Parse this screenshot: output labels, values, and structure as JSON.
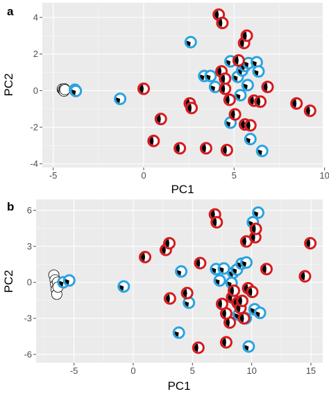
{
  "chart_data": [
    {
      "panel_label": "a",
      "type": "scatter",
      "xlabel": "PC1",
      "ylabel": "PC2",
      "xlim": [
        -5.6,
        9.9
      ],
      "ylim": [
        -4.2,
        4.8
      ],
      "xticks": [
        -5,
        0,
        5,
        10
      ],
      "xtick_labels": [
        "-5",
        "0",
        "5",
        "10"
      ],
      "yticks": [
        -4,
        -2,
        0,
        2,
        4
      ],
      "ytick_labels": [
        "-4",
        "-2",
        "0",
        "2",
        "4"
      ],
      "grid": true,
      "colors": {
        "group_black": "#000000",
        "group_blue": "#29a3e0",
        "group_red": "#d7191c"
      },
      "series": [
        {
          "group": "black",
          "points": [
            [
              -4.5,
              0.08
            ],
            [
              -4.45,
              0.02
            ],
            [
              -4.4,
              -0.03
            ],
            [
              -4.38,
              0.1
            ],
            [
              -4.35,
              0.05
            ]
          ]
        },
        {
          "group": "blue",
          "points": [
            [
              -3.8,
              0.05
            ],
            [
              -3.75,
              -0.02
            ],
            [
              -1.3,
              -0.45
            ],
            [
              2.6,
              2.65
            ],
            [
              3.35,
              0.8
            ],
            [
              3.7,
              0.8
            ],
            [
              3.95,
              0.2
            ],
            [
              4.8,
              1.6
            ],
            [
              5.2,
              0.75
            ],
            [
              5.45,
              1.1
            ],
            [
              5.6,
              1.35
            ],
            [
              5.8,
              1.5
            ],
            [
              6.25,
              1.55
            ],
            [
              6.35,
              1.05
            ],
            [
              5.75,
              0.3
            ],
            [
              5.35,
              -0.25
            ],
            [
              4.8,
              -1.75
            ],
            [
              5.9,
              -2.65
            ],
            [
              6.55,
              -3.3
            ]
          ]
        },
        {
          "group": "red",
          "points": [
            [
              0.0,
              0.1
            ],
            [
              0.95,
              -1.55
            ],
            [
              0.55,
              -2.75
            ],
            [
              2.0,
              -3.15
            ],
            [
              2.55,
              -0.7
            ],
            [
              2.65,
              -0.95
            ],
            [
              3.45,
              -3.15
            ],
            [
              4.15,
              4.15
            ],
            [
              4.35,
              3.7
            ],
            [
              4.6,
              -3.25
            ],
            [
              4.3,
              1.05
            ],
            [
              4.5,
              0.65
            ],
            [
              4.5,
              0.1
            ],
            [
              4.75,
              -0.5
            ],
            [
              5.05,
              -1.3
            ],
            [
              5.25,
              1.65
            ],
            [
              5.55,
              2.6
            ],
            [
              5.7,
              3.0
            ],
            [
              5.6,
              -1.85
            ],
            [
              5.9,
              -1.9
            ],
            [
              6.1,
              -0.55
            ],
            [
              6.45,
              -0.6
            ],
            [
              6.85,
              0.2
            ],
            [
              8.45,
              -0.7
            ],
            [
              9.2,
              -1.1
            ]
          ]
        }
      ]
    },
    {
      "panel_label": "b",
      "type": "scatter",
      "xlabel": "PC1",
      "ylabel": "PC2",
      "xlim": [
        -8.2,
        16.0
      ],
      "ylim": [
        -6.7,
        6.9
      ],
      "xticks": [
        -5,
        0,
        5,
        10,
        15
      ],
      "xtick_labels": [
        "-5",
        "0",
        "5",
        "10",
        "15"
      ],
      "yticks": [
        -6,
        -3,
        0,
        3,
        6
      ],
      "ytick_labels": [
        "-6",
        "-3",
        "0",
        "3",
        "6"
      ],
      "grid": true,
      "colors": {
        "group_black": "#000000",
        "group_blue": "#29a3e0",
        "group_red": "#d7191c"
      },
      "series": [
        {
          "group": "black",
          "points": [
            [
              -6.7,
              0.6
            ],
            [
              -6.6,
              0.2
            ],
            [
              -6.55,
              -0.2
            ],
            [
              -6.5,
              -0.6
            ],
            [
              -6.45,
              -1.0
            ],
            [
              -6.4,
              0.0
            ],
            [
              -6.35,
              -0.4
            ]
          ]
        },
        {
          "group": "blue",
          "points": [
            [
              -5.9,
              0.0
            ],
            [
              -5.4,
              0.15
            ],
            [
              -0.8,
              -0.35
            ],
            [
              4.05,
              0.9
            ],
            [
              3.85,
              -4.2
            ],
            [
              4.7,
              -1.7
            ],
            [
              7.0,
              1.1
            ],
            [
              7.65,
              1.15
            ],
            [
              7.3,
              0.15
            ],
            [
              8.45,
              0.8
            ],
            [
              8.75,
              1.05
            ],
            [
              9.15,
              1.55
            ],
            [
              9.55,
              1.65
            ],
            [
              10.1,
              5.0
            ],
            [
              10.55,
              5.8
            ],
            [
              8.3,
              -0.05
            ],
            [
              8.9,
              -2.7
            ],
            [
              9.5,
              -3.0
            ],
            [
              10.25,
              -2.25
            ],
            [
              10.7,
              -2.55
            ],
            [
              9.75,
              -5.35
            ]
          ]
        },
        {
          "group": "red",
          "points": [
            [
              1.0,
              2.1
            ],
            [
              2.75,
              2.7
            ],
            [
              3.05,
              3.25
            ],
            [
              3.1,
              -1.35
            ],
            [
              4.55,
              -0.9
            ],
            [
              5.5,
              -5.45
            ],
            [
              5.65,
              1.6
            ],
            [
              6.9,
              5.65
            ],
            [
              7.05,
              5.0
            ],
            [
              7.5,
              -1.8
            ],
            [
              7.85,
              -5.0
            ],
            [
              8.15,
              -3.35
            ],
            [
              7.85,
              -2.6
            ],
            [
              8.35,
              -1.25
            ],
            [
              8.5,
              -0.7
            ],
            [
              8.8,
              -1.7
            ],
            [
              9.05,
              -2.15
            ],
            [
              9.2,
              -1.55
            ],
            [
              9.55,
              3.4
            ],
            [
              10.3,
              3.75
            ],
            [
              9.7,
              -0.5
            ],
            [
              10.05,
              -0.8
            ],
            [
              9.35,
              -3.0
            ],
            [
              10.35,
              4.45
            ],
            [
              11.25,
              1.1
            ],
            [
              14.5,
              0.5
            ],
            [
              14.95,
              3.25
            ]
          ]
        }
      ]
    }
  ]
}
